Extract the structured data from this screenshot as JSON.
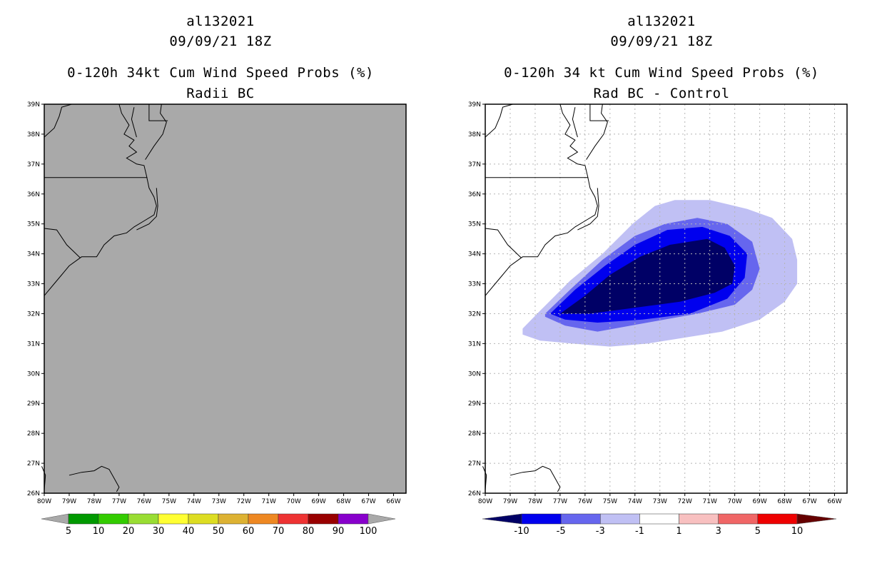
{
  "chart_data": [
    {
      "type": "heatmap",
      "storm_id": "al132021",
      "datetime": "09/09/21 18Z",
      "title": "0-120h 34kt Cum Wind Speed Probs (%)",
      "subtitle": "Radii BC",
      "x_ticks": [
        "80W",
        "79W",
        "78W",
        "77W",
        "76W",
        "75W",
        "74W",
        "73W",
        "72W",
        "71W",
        "70W",
        "69W",
        "68W",
        "67W",
        "66W"
      ],
      "y_ticks": [
        "26N",
        "27N",
        "28N",
        "29N",
        "30N",
        "31N",
        "32N",
        "33N",
        "34N",
        "35N",
        "36N",
        "37N",
        "38N",
        "39N"
      ],
      "xlim": [
        -80,
        -65.5
      ],
      "ylim": [
        26,
        39
      ],
      "grid": false,
      "background_color": "#a9a9a9",
      "colorbar": {
        "labels": [
          "5",
          "10",
          "20",
          "30",
          "40",
          "50",
          "60",
          "70",
          "80",
          "90",
          "100"
        ],
        "colors": [
          "#009900",
          "#33cc00",
          "#99dd33",
          "#ffff33",
          "#dddd22",
          "#ddb233",
          "#ee8822",
          "#ee3333",
          "#990000",
          "#8800cc"
        ],
        "low_extend_color": "#a9a9a9",
        "high_extend_color": "#a9a9a9"
      }
    },
    {
      "type": "heatmap",
      "storm_id": "al132021",
      "datetime": "09/09/21 18Z",
      "title": "0-120h 34 kt Cum Wind Speed Probs (%)",
      "subtitle": "Rad BC - Control",
      "x_ticks": [
        "80W",
        "79W",
        "78W",
        "77W",
        "76W",
        "75W",
        "74W",
        "73W",
        "72W",
        "71W",
        "70W",
        "69W",
        "68W",
        "67W",
        "66W"
      ],
      "y_ticks": [
        "26N",
        "27N",
        "28N",
        "29N",
        "30N",
        "31N",
        "32N",
        "33N",
        "34N",
        "35N",
        "36N",
        "37N",
        "38N",
        "39N"
      ],
      "xlim": [
        -80,
        -65.5
      ],
      "ylim": [
        26,
        39
      ],
      "grid": true,
      "background_color": "#ffffff",
      "colorbar": {
        "labels": [
          "-10",
          "-5",
          "-3",
          "-1",
          "1",
          "3",
          "5",
          "10"
        ],
        "colors": [
          "#0000ee",
          "#6666ee",
          "#c0c0f4",
          "#ffffff",
          "#f8c0c0",
          "#f06666",
          "#ee0000"
        ],
        "low_extend_color": "#000066",
        "high_extend_color": "#660000"
      },
      "contours": [
        {
          "level": "-1 to -3",
          "color": "#c0c0f4",
          "lonlat": [
            [
              -78.5,
              31.5
            ],
            [
              -77.8,
              32.1
            ],
            [
              -76.6,
              33.1
            ],
            [
              -75.3,
              34.0
            ],
            [
              -74.1,
              35.0
            ],
            [
              -73.2,
              35.6
            ],
            [
              -72.4,
              35.8
            ],
            [
              -71.0,
              35.8
            ],
            [
              -69.5,
              35.5
            ],
            [
              -68.5,
              35.2
            ],
            [
              -67.7,
              34.5
            ],
            [
              -67.5,
              33.8
            ],
            [
              -67.5,
              33.0
            ],
            [
              -68.0,
              32.4
            ],
            [
              -69.0,
              31.8
            ],
            [
              -70.5,
              31.4
            ],
            [
              -72.0,
              31.2
            ],
            [
              -73.5,
              31.0
            ],
            [
              -75.0,
              30.9
            ],
            [
              -76.5,
              31.0
            ],
            [
              -77.8,
              31.1
            ],
            [
              -78.5,
              31.3
            ]
          ]
        },
        {
          "level": "-3 to -5",
          "color": "#6666ee",
          "lonlat": [
            [
              -77.6,
              32.0
            ],
            [
              -76.6,
              32.8
            ],
            [
              -75.3,
              33.8
            ],
            [
              -74.0,
              34.6
            ],
            [
              -72.8,
              35.0
            ],
            [
              -71.5,
              35.2
            ],
            [
              -70.3,
              35.0
            ],
            [
              -69.3,
              34.4
            ],
            [
              -69.0,
              33.5
            ],
            [
              -69.3,
              32.8
            ],
            [
              -70.0,
              32.3
            ],
            [
              -71.5,
              32.0
            ],
            [
              -73.5,
              31.7
            ],
            [
              -75.5,
              31.4
            ],
            [
              -76.8,
              31.6
            ],
            [
              -77.6,
              31.9
            ]
          ]
        },
        {
          "level": "-5 to -10",
          "color": "#0000ee",
          "lonlat": [
            [
              -77.4,
              32.0
            ],
            [
              -76.4,
              32.8
            ],
            [
              -75.2,
              33.6
            ],
            [
              -74.0,
              34.3
            ],
            [
              -72.7,
              34.8
            ],
            [
              -71.3,
              34.9
            ],
            [
              -70.2,
              34.6
            ],
            [
              -69.5,
              34.0
            ],
            [
              -69.6,
              33.2
            ],
            [
              -70.3,
              32.5
            ],
            [
              -71.8,
              32.0
            ],
            [
              -73.7,
              31.8
            ],
            [
              -75.5,
              31.7
            ],
            [
              -76.8,
              31.8
            ],
            [
              -77.4,
              32.0
            ]
          ]
        },
        {
          "level": "< -10",
          "color": "#000066",
          "lonlat": [
            [
              -77.0,
              32.0
            ],
            [
              -76.0,
              32.6
            ],
            [
              -75.0,
              33.3
            ],
            [
              -73.8,
              33.9
            ],
            [
              -72.6,
              34.3
            ],
            [
              -71.1,
              34.5
            ],
            [
              -70.4,
              34.2
            ],
            [
              -70.0,
              33.6
            ],
            [
              -70.1,
              33.0
            ],
            [
              -70.8,
              32.7
            ],
            [
              -72.2,
              32.4
            ],
            [
              -74.0,
              32.2
            ],
            [
              -75.8,
              32.0
            ],
            [
              -77.0,
              32.0
            ]
          ]
        }
      ]
    }
  ]
}
